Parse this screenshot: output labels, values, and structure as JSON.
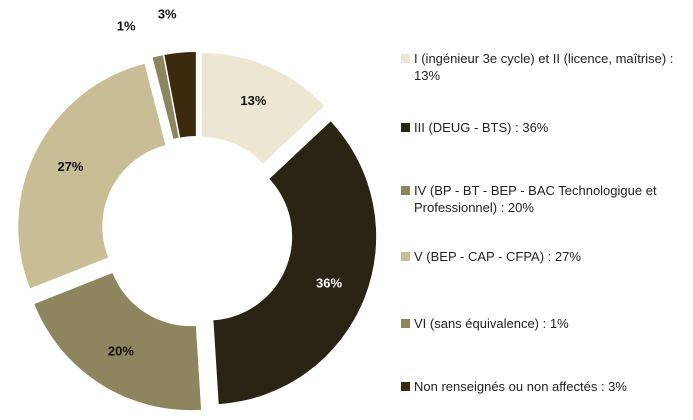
{
  "chart_data": {
    "type": "donut",
    "categories": [
      "I (ingénieur 3e cycle) et II (licence, maîtrise) : 13%",
      "III (DEUG - BTS) : 36%",
      "IV (BP - BT - BEP - BAC Technologigue et Professionnel) : 20%",
      "V (BEP - CAP - CFPA) : 27%",
      "VI (sans équivalence) : 1%",
      "Non renseignés ou non affectés : 3%"
    ],
    "values": [
      13,
      36,
      20,
      27,
      1,
      3
    ],
    "value_labels": [
      "13%",
      "36%",
      "20%",
      "27%",
      "1%",
      "3%"
    ],
    "colors": [
      "#ece6d2",
      "#2a2414",
      "#8d855e",
      "#c9bd95",
      "#8d855e",
      "#3b2a0e"
    ],
    "label_colors": [
      "#111111",
      "#ffffff",
      "#111111",
      "#111111",
      "#111111",
      "#111111"
    ]
  }
}
